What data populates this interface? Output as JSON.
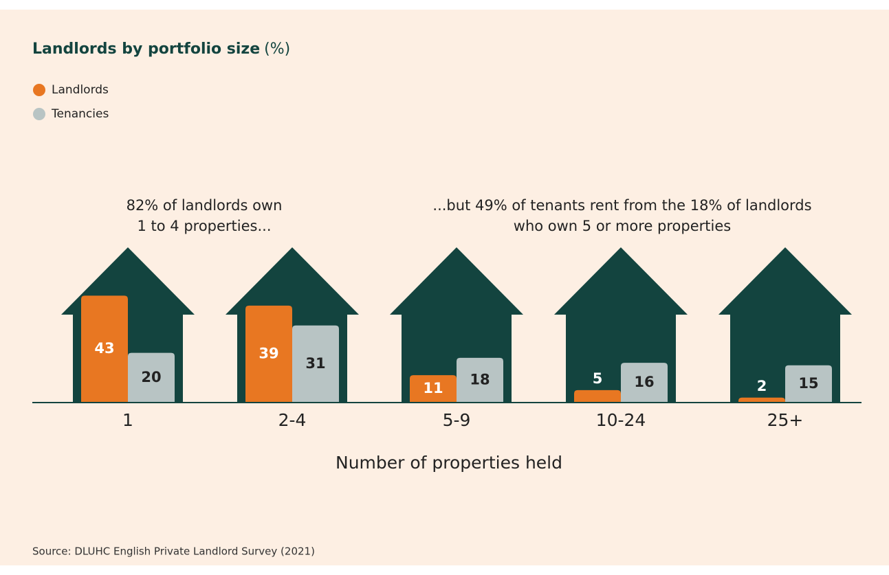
{
  "chart_data": {
    "type": "bar",
    "title": "Landlords by portfolio size",
    "title_unit": "(%)",
    "categories": [
      "1",
      "2-4",
      "5-9",
      "10-24",
      "25+"
    ],
    "series": [
      {
        "name": "Landlords",
        "color": "#e87722",
        "values": [
          43,
          39,
          11,
          5,
          2
        ]
      },
      {
        "name": "Tenancies",
        "color": "#b8c4c4",
        "values": [
          20,
          31,
          18,
          16,
          15
        ]
      }
    ],
    "annotations": [
      {
        "lines": [
          "82% of landlords own",
          "1 to 4 properties..."
        ]
      },
      {
        "lines": [
          "...but 49% of tenants rent from the 18% of landlords",
          "who own 5 or more properties"
        ]
      }
    ],
    "xlabel": "Number of properties held",
    "source": "Source: DLUHC English Private Landlord Survey (2021)"
  }
}
